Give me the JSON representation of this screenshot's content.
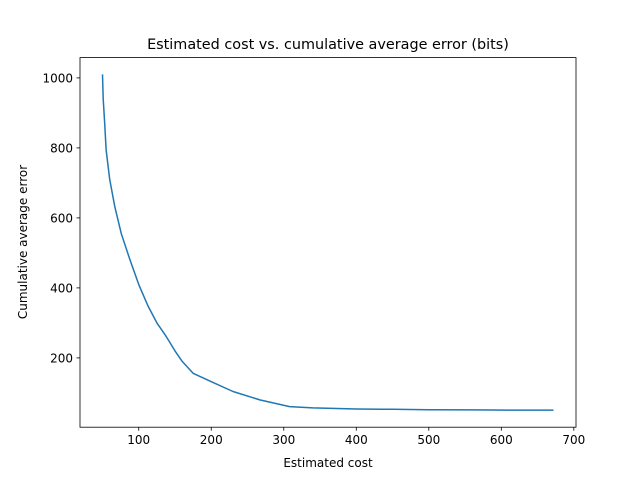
{
  "chart_data": {
    "type": "line",
    "title": "Estimated cost vs. cumulative average error (bits)",
    "xlabel": "Estimated cost",
    "ylabel": "Cumulative average error",
    "xlim": [
      19,
      703
    ],
    "ylim": [
      2,
      1058
    ],
    "xticks": [
      100,
      200,
      300,
      400,
      500,
      600,
      700
    ],
    "yticks": [
      200,
      400,
      600,
      800,
      1000
    ],
    "grid": false,
    "color": "#1f77b4",
    "series": [
      {
        "name": "error",
        "x": [
          50,
          51,
          53,
          55,
          60,
          67,
          76,
          88,
          100,
          113,
          125,
          138,
          150,
          160,
          175,
          200,
          230,
          267,
          308,
          340,
          400,
          450,
          500,
          560,
          620,
          672
        ],
        "y": [
          1010,
          940,
          870,
          795,
          710,
          632,
          555,
          480,
          410,
          347,
          300,
          261,
          220,
          190,
          156,
          132,
          104,
          80,
          61,
          57,
          54,
          53,
          52,
          51.5,
          51,
          51
        ]
      }
    ]
  }
}
